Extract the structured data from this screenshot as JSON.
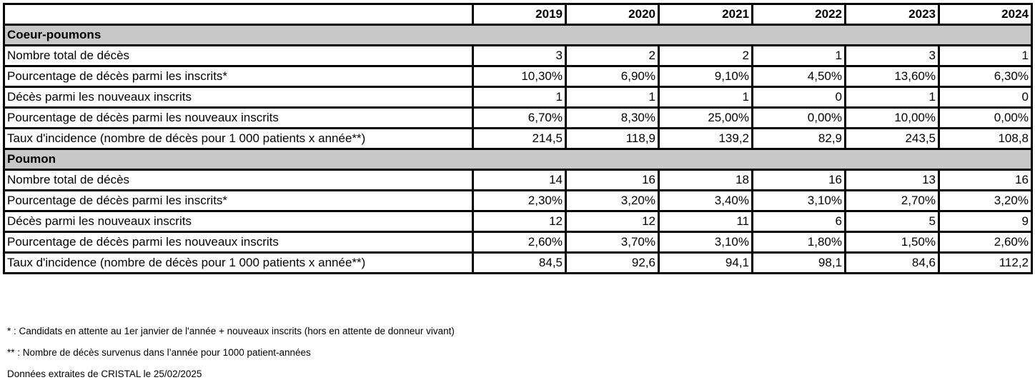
{
  "years": [
    "2019",
    "2020",
    "2021",
    "2022",
    "2023",
    "2024"
  ],
  "sections": [
    {
      "title": "Coeur-poumons",
      "rows": [
        {
          "label": "Nombre total de décès",
          "values": [
            "3",
            "2",
            "2",
            "1",
            "3",
            "1"
          ]
        },
        {
          "label": "Pourcentage de décès parmi les inscrits*",
          "values": [
            "10,30%",
            "6,90%",
            "9,10%",
            "4,50%",
            "13,60%",
            "6,30%"
          ]
        },
        {
          "label": "Décès parmi les nouveaux inscrits",
          "values": [
            "1",
            "1",
            "1",
            "0",
            "1",
            "0"
          ]
        },
        {
          "label": "Pourcentage de décès parmi les nouveaux inscrits",
          "values": [
            "6,70%",
            "8,30%",
            "25,00%",
            "0,00%",
            "10,00%",
            "0,00%"
          ]
        },
        {
          "label": "Taux d'incidence (nombre de décès pour 1 000 patients x année**)",
          "values": [
            "214,5",
            "118,9",
            "139,2",
            "82,9",
            "243,5",
            "108,8"
          ]
        }
      ]
    },
    {
      "title": "Poumon",
      "rows": [
        {
          "label": "Nombre total de décès",
          "values": [
            "14",
            "16",
            "18",
            "16",
            "13",
            "16"
          ]
        },
        {
          "label": "Pourcentage de décès parmi les inscrits*",
          "values": [
            "2,30%",
            "3,20%",
            "3,40%",
            "3,10%",
            "2,70%",
            "3,20%"
          ]
        },
        {
          "label": "Décès parmi les nouveaux inscrits",
          "values": [
            "12",
            "12",
            "11",
            "6",
            "5",
            "9"
          ]
        },
        {
          "label": "Pourcentage de décès parmi les nouveaux inscrits",
          "values": [
            "2,60%",
            "3,70%",
            "3,10%",
            "1,80%",
            "1,50%",
            "2,60%"
          ]
        },
        {
          "label": "Taux d'incidence (nombre de décès pour 1 000 patients x année**)",
          "values": [
            "84,5",
            "92,6",
            "94,1",
            "98,1",
            "84,6",
            "112,2"
          ]
        }
      ]
    }
  ],
  "notes": [
    "* : Candidats en attente au 1er janvier de l'année + nouveaux inscrits (hors en attente de donneur vivant)",
    "** : Nombre de décès survenus dans l’année pour 1000 patient-années",
    "Données extraites de CRISTAL le 25/02/2025"
  ]
}
